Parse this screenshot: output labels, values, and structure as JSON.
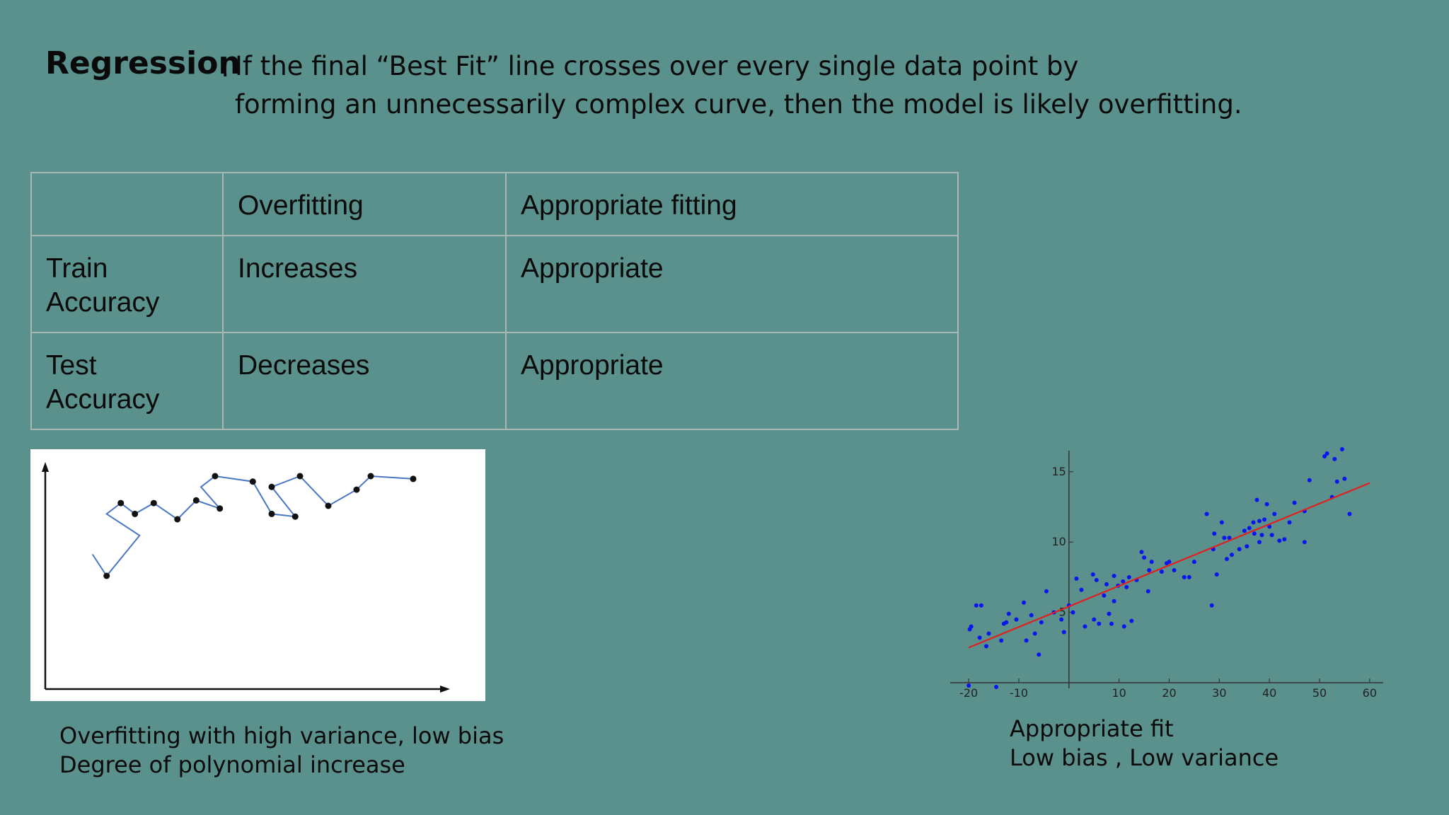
{
  "heading": {
    "term": "Regression",
    "colon": ":",
    "line1": "If  the final “Best Fit” line crosses over every single data point by",
    "line2": "forming an unnecessarily complex curve, then the model is likely overfitting."
  },
  "table": {
    "header": [
      "",
      "Overfitting",
      "Appropriate fitting"
    ],
    "rows": [
      {
        "label_l1": "Train",
        "label_l2": "Accuracy",
        "overfitting": "Increases",
        "appropriate": "Appropriate"
      },
      {
        "label_l1": "Test",
        "label_l2": "Accuracy",
        "overfitting": "Decreases",
        "appropriate": "Appropriate"
      }
    ]
  },
  "overfit_caption": {
    "line1": "Overfitting with high variance, low bias",
    "line2": "Degree of polynomial increase"
  },
  "fit_caption": {
    "line1": "Appropriate fit",
    "line2": "Low bias , Low variance"
  },
  "chart_data": [
    {
      "type": "line",
      "points": [
        {
          "x": 1.0,
          "y": 5.0
        },
        {
          "x": 1.3,
          "y": 4.2
        },
        {
          "x": 2.0,
          "y": 5.7
        },
        {
          "x": 1.3,
          "y": 6.5
        },
        {
          "x": 1.6,
          "y": 6.9
        },
        {
          "x": 1.9,
          "y": 6.5
        },
        {
          "x": 2.3,
          "y": 6.9
        },
        {
          "x": 2.8,
          "y": 6.3
        },
        {
          "x": 3.2,
          "y": 7.0
        },
        {
          "x": 3.7,
          "y": 6.7
        },
        {
          "x": 3.3,
          "y": 7.5
        },
        {
          "x": 3.6,
          "y": 7.9
        },
        {
          "x": 4.4,
          "y": 7.7
        },
        {
          "x": 4.8,
          "y": 6.5
        },
        {
          "x": 5.3,
          "y": 6.4
        },
        {
          "x": 4.8,
          "y": 7.5
        },
        {
          "x": 5.4,
          "y": 7.9
        },
        {
          "x": 6.0,
          "y": 6.8
        },
        {
          "x": 6.6,
          "y": 7.4
        },
        {
          "x": 6.9,
          "y": 7.9
        },
        {
          "x": 7.8,
          "y": 7.8
        }
      ],
      "markers": [
        {
          "x": 1.3,
          "y": 4.2
        },
        {
          "x": 1.6,
          "y": 6.9
        },
        {
          "x": 1.9,
          "y": 6.5
        },
        {
          "x": 2.3,
          "y": 6.9
        },
        {
          "x": 2.8,
          "y": 6.3
        },
        {
          "x": 3.2,
          "y": 7.0
        },
        {
          "x": 3.7,
          "y": 6.7
        },
        {
          "x": 3.6,
          "y": 7.9
        },
        {
          "x": 4.4,
          "y": 7.7
        },
        {
          "x": 4.8,
          "y": 6.5
        },
        {
          "x": 5.3,
          "y": 6.4
        },
        {
          "x": 4.8,
          "y": 7.5
        },
        {
          "x": 5.4,
          "y": 7.9
        },
        {
          "x": 6.0,
          "y": 6.8
        },
        {
          "x": 6.6,
          "y": 7.4
        },
        {
          "x": 6.9,
          "y": 7.9
        },
        {
          "x": 7.8,
          "y": 7.8
        }
      ],
      "xlim": [
        0,
        8.4
      ],
      "ylim": [
        0,
        8.4
      ],
      "line_color": "#4a77c4",
      "marker_color": "#111111",
      "axis_ticks": false,
      "grid": false
    },
    {
      "type": "scatter",
      "x_ticks": [
        -20,
        -10,
        10,
        20,
        30,
        40,
        50,
        60
      ],
      "x_tick_labels": [
        "-20",
        "-10",
        "10",
        "20",
        "30",
        "40",
        "50",
        "60"
      ],
      "y_ticks": [
        5,
        10,
        15
      ],
      "y_tick_labels": [
        "5",
        "10",
        "15"
      ],
      "xlim": [
        -22,
        62
      ],
      "ylim": [
        -0.5,
        16.5
      ],
      "points": [
        [
          -19.5,
          4.0
        ],
        [
          -19.8,
          3.8
        ],
        [
          -18.5,
          5.5
        ],
        [
          -17.5,
          5.5
        ],
        [
          -17.8,
          3.2
        ],
        [
          -16.5,
          2.6
        ],
        [
          -16.0,
          3.5
        ],
        [
          -14.5,
          -0.3
        ],
        [
          -20.0,
          -0.2
        ],
        [
          -13.5,
          3.0
        ],
        [
          -13.0,
          4.2
        ],
        [
          -12.5,
          4.3
        ],
        [
          -12.0,
          4.9
        ],
        [
          -10.5,
          4.5
        ],
        [
          -9.0,
          5.7
        ],
        [
          -8.5,
          3.0
        ],
        [
          -7.5,
          4.8
        ],
        [
          -6.8,
          3.5
        ],
        [
          -6.0,
          2.0
        ],
        [
          -5.5,
          4.3
        ],
        [
          -4.5,
          6.5
        ],
        [
          -3.0,
          5.0
        ],
        [
          -1.5,
          4.5
        ],
        [
          -1.0,
          3.6
        ],
        [
          0.0,
          5.5
        ],
        [
          0.8,
          5.0
        ],
        [
          1.5,
          7.4
        ],
        [
          2.5,
          6.6
        ],
        [
          3.2,
          4.0
        ],
        [
          4.8,
          7.7
        ],
        [
          5.0,
          4.5
        ],
        [
          5.5,
          7.3
        ],
        [
          6.0,
          4.2
        ],
        [
          7.0,
          6.2
        ],
        [
          7.5,
          7.0
        ],
        [
          8.0,
          4.9
        ],
        [
          8.5,
          4.2
        ],
        [
          9.0,
          7.6
        ],
        [
          9.0,
          5.8
        ],
        [
          9.8,
          6.9
        ],
        [
          10.8,
          7.2
        ],
        [
          11.0,
          4.0
        ],
        [
          11.5,
          6.8
        ],
        [
          12.0,
          7.5
        ],
        [
          12.5,
          4.4
        ],
        [
          13.5,
          7.3
        ],
        [
          14.5,
          9.3
        ],
        [
          15.0,
          8.9
        ],
        [
          15.8,
          6.5
        ],
        [
          16.0,
          8.0
        ],
        [
          16.5,
          8.6
        ],
        [
          18.5,
          7.9
        ],
        [
          19.5,
          8.5
        ],
        [
          20.0,
          8.6
        ],
        [
          21.0,
          8.0
        ],
        [
          23.0,
          7.5
        ],
        [
          24.0,
          7.5
        ],
        [
          25.0,
          8.6
        ],
        [
          27.5,
          12.0
        ],
        [
          28.5,
          5.5
        ],
        [
          28.8,
          9.5
        ],
        [
          29.0,
          10.6
        ],
        [
          29.5,
          7.7
        ],
        [
          30.5,
          11.4
        ],
        [
          31.0,
          10.3
        ],
        [
          31.5,
          8.8
        ],
        [
          32.0,
          10.3
        ],
        [
          32.5,
          9.1
        ],
        [
          34.0,
          9.5
        ],
        [
          35.0,
          10.8
        ],
        [
          35.5,
          9.7
        ],
        [
          36.0,
          11.0
        ],
        [
          36.8,
          11.4
        ],
        [
          37.0,
          10.6
        ],
        [
          37.5,
          13.0
        ],
        [
          38.0,
          11.5
        ],
        [
          38.0,
          10.0
        ],
        [
          38.5,
          10.5
        ],
        [
          39.0,
          11.6
        ],
        [
          39.5,
          12.7
        ],
        [
          40.0,
          11.1
        ],
        [
          40.5,
          10.5
        ],
        [
          41.0,
          12.0
        ],
        [
          42.0,
          10.1
        ],
        [
          43.0,
          10.2
        ],
        [
          44.0,
          11.4
        ],
        [
          45.0,
          12.8
        ],
        [
          47.0,
          12.2
        ],
        [
          47.0,
          10.0
        ],
        [
          48.0,
          14.4
        ],
        [
          51.0,
          16.1
        ],
        [
          51.5,
          16.3
        ],
        [
          53.0,
          15.9
        ],
        [
          53.5,
          14.3
        ],
        [
          54.5,
          16.6
        ],
        [
          55.0,
          14.5
        ],
        [
          56.0,
          12.0
        ],
        [
          52.5,
          13.2
        ]
      ],
      "fit_line": {
        "x": [
          -20,
          60
        ],
        "y": [
          2.5,
          14.2
        ]
      },
      "point_color": "#0a14f0",
      "line_color": "#e02020",
      "axis_color": "#333333",
      "grid": false
    }
  ]
}
